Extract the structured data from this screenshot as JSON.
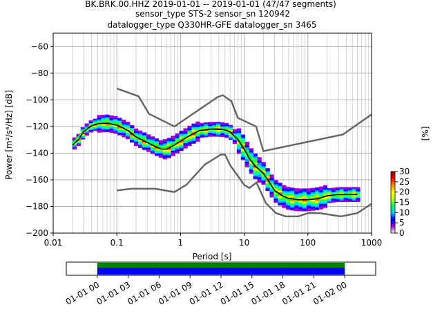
{
  "figure": {
    "title_lines": [
      "BK.BRK.00.HHZ   2019-01-01 -- 2019-01-01  (47/47 segments)",
      "sensor_type STS-2 sensor_sn 120942",
      "datalogger_type Q330HR-GFE datalogger_sn 3465"
    ]
  },
  "chart_data": [
    {
      "type": "heatmap",
      "subtype": "probabilistic-power-spectral-density",
      "title": "BK.BRK.00.HHZ   2019-01-01 -- 2019-01-01  (47/47 segments)",
      "xlabel": "Period [s]",
      "ylabel": "Power [m²/s⁴/Hz] [dB]",
      "xscale": "log",
      "xlim": [
        0.01,
        1000
      ],
      "ylim": [
        -200,
        -50
      ],
      "xticks": [
        0.01,
        0.1,
        1,
        10,
        100,
        1000
      ],
      "xtick_labels": [
        "0.01",
        "0.1",
        "1",
        "10",
        "100",
        "1000"
      ],
      "yticks": [
        -200,
        -180,
        -160,
        -140,
        -120,
        -100,
        -80,
        -60
      ],
      "ytick_labels": [
        "−200",
        "−180",
        "−160",
        "−140",
        "−120",
        "−100",
        "−80",
        "−60"
      ],
      "grid": true,
      "noise_models": {
        "color": "#666666",
        "high": {
          "x": [
            0.1,
            0.22,
            0.32,
            0.8,
            3.8,
            4.6,
            6.3,
            7.9,
            15.4,
            20,
            354.8,
            1000
          ],
          "y": [
            -91.5,
            -97.4,
            -110.5,
            -120,
            -98,
            -96.5,
            -101,
            -113.5,
            -120,
            -138.5,
            -126,
            -111
          ]
        },
        "low": {
          "x": [
            0.1,
            0.17,
            0.4,
            0.8,
            1.24,
            2.4,
            4.3,
            5,
            6,
            10,
            12,
            15.6,
            21.9,
            31.6,
            45,
            70,
            101,
            154,
            328,
            600,
            1000
          ],
          "y": [
            -168,
            -166.7,
            -166.7,
            -169.2,
            -163.7,
            -148.6,
            -141.1,
            -141.1,
            -149,
            -163.8,
            -166.2,
            -162.1,
            -177.5,
            -185,
            -187.5,
            -187.5,
            -185,
            -185,
            -187.5,
            -185,
            -178
          ]
        }
      },
      "mean_curve": {
        "color": "#000000",
        "x": [
          0.02,
          0.025,
          0.03,
          0.04,
          0.05,
          0.07,
          0.1,
          0.15,
          0.2,
          0.3,
          0.4,
          0.5,
          0.6,
          0.8,
          1,
          1.5,
          2,
          3,
          4,
          5,
          6,
          8,
          10,
          12,
          15,
          20,
          25,
          30,
          40,
          50,
          70,
          100,
          150,
          200,
          300,
          400,
          500,
          600
        ],
        "y": [
          -134,
          -130,
          -124,
          -119.5,
          -118,
          -117.5,
          -119,
          -123,
          -128,
          -132,
          -135,
          -137,
          -137,
          -134,
          -131,
          -126,
          -123,
          -122,
          -122,
          -122.5,
          -124,
          -130,
          -137,
          -144,
          -150,
          -155,
          -162,
          -168,
          -172,
          -174,
          -175,
          -175,
          -174,
          -172,
          -171,
          -171,
          -171,
          -171
        ]
      },
      "mode_curve": {
        "color": "#00ff00",
        "x": [
          0.02,
          0.03,
          0.05,
          0.07,
          0.1,
          0.2,
          0.4,
          0.5,
          0.6,
          1,
          2,
          3,
          5,
          8,
          10,
          15,
          20,
          30,
          50,
          100,
          200,
          600
        ],
        "y": [
          -133,
          -123,
          -117,
          -117,
          -118,
          -127,
          -134,
          -136,
          -136,
          -130,
          -123,
          -121.5,
          -122,
          -129,
          -136,
          -149,
          -156,
          -169,
          -175,
          -175,
          -172,
          -171
        ]
      },
      "colorbar": {
        "label": "[%]",
        "ticks": [
          0,
          5,
          10,
          15,
          20,
          25,
          30
        ],
        "range": [
          0,
          30
        ],
        "colormap": [
          "#ffffff",
          "#a300d6",
          "#0000ff",
          "#00d0ff",
          "#00ff60",
          "#c8ff00",
          "#ffff00",
          "#ff8c00",
          "#ff0000",
          "#8b0000"
        ]
      }
    },
    {
      "type": "bar",
      "subtype": "data-coverage-timeline",
      "xticks": [
        "01-01 00",
        "01-01 03",
        "01-01 06",
        "01-01 09",
        "01-01 12",
        "01-01 15",
        "01-01 18",
        "01-01 21",
        "01-02 00"
      ],
      "xlim_hours": [
        -3,
        27
      ],
      "series": [
        {
          "color": "#008000",
          "start_hour": 0,
          "end_hour": 24,
          "row": "top"
        },
        {
          "color": "#0000ff",
          "start_hour": 0,
          "end_hour": 24,
          "row": "bottom"
        }
      ]
    }
  ]
}
